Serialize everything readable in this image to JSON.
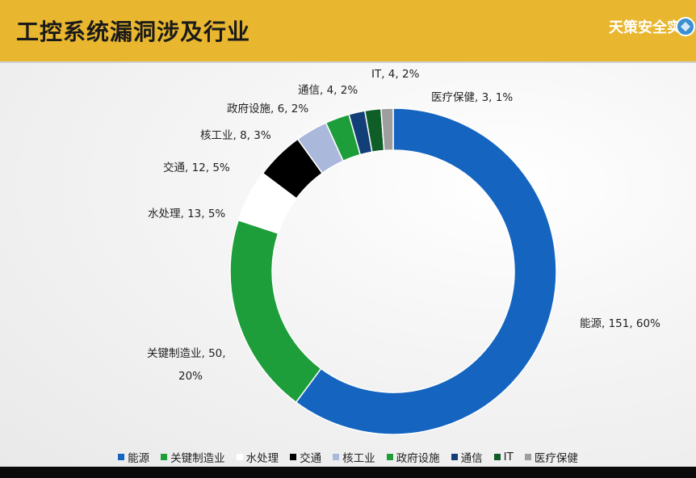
{
  "header": {
    "title": "工控系统漏洞涉及行业",
    "brand": "天策安全实"
  },
  "chart_data": {
    "type": "pie",
    "donut": true,
    "title": "工控系统漏洞涉及行业",
    "legend_position": "bottom",
    "series": [
      {
        "name": "能源",
        "value": 151,
        "percent": "60%",
        "color": "#1565c0",
        "label": "能源, 151, 60%"
      },
      {
        "name": "关键制造业",
        "value": 50,
        "percent": "20%",
        "color": "#1e9e3a",
        "label": "关键制造业, 50,",
        "label2": "20%"
      },
      {
        "name": "水处理",
        "value": 13,
        "percent": "5%",
        "color": "#ffffff",
        "label": "水处理, 13, 5%"
      },
      {
        "name": "交通",
        "value": 12,
        "percent": "5%",
        "color": "#000000",
        "label": "交通, 12, 5%"
      },
      {
        "name": "核工业",
        "value": 8,
        "percent": "3%",
        "color": "#aab8dc",
        "label": "核工业, 8, 3%"
      },
      {
        "name": "政府设施",
        "value": 6,
        "percent": "2%",
        "color": "#1e9e3a",
        "label": "政府设施, 6, 2%"
      },
      {
        "name": "通信",
        "value": 4,
        "percent": "2%",
        "color": "#123f78",
        "label": "通信, 4, 2%"
      },
      {
        "name": "IT",
        "value": 4,
        "percent": "2%",
        "color": "#0f5d27",
        "label": "IT, 4, 2%"
      },
      {
        "name": "医疗保健",
        "value": 3,
        "percent": "1%",
        "color": "#9e9e9e",
        "label": "医疗保健, 3, 1%"
      }
    ]
  }
}
